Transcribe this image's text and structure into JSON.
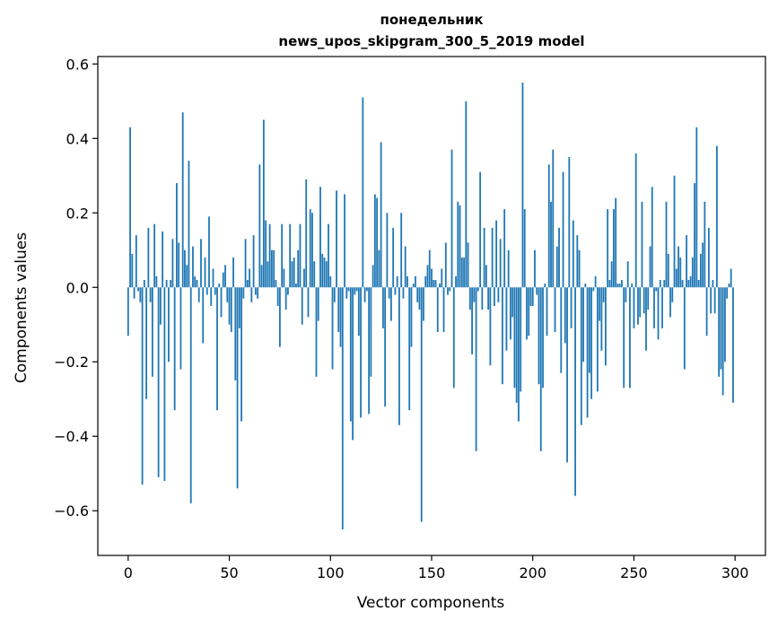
{
  "chart_data": {
    "type": "bar",
    "title": "понедельник",
    "subtitle": "news_upos_skipgram_300_5_2019 model",
    "xlabel": "Vector components",
    "ylabel": "Components values",
    "xlim": [
      -15,
      315
    ],
    "ylim": [
      -0.72,
      0.62
    ],
    "xticks": [
      0,
      50,
      100,
      150,
      200,
      250,
      300
    ],
    "yticks": [
      -0.6,
      -0.4,
      -0.2,
      0.0,
      0.2,
      0.4,
      0.6
    ],
    "xtick_labels": [
      "0",
      "50",
      "100",
      "150",
      "200",
      "250",
      "300"
    ],
    "ytick_labels": [
      "−0.6",
      "−0.4",
      "−0.2",
      "0.0",
      "0.2",
      "0.4",
      "0.6"
    ],
    "bar_color": "#1f77b4",
    "grid": false,
    "x_start": 0,
    "values": [
      -0.13,
      0.43,
      0.09,
      -0.03,
      0.14,
      -0.01,
      -0.04,
      -0.53,
      0.02,
      -0.3,
      0.16,
      -0.04,
      -0.24,
      0.17,
      0.03,
      -0.51,
      -0.1,
      0.15,
      -0.52,
      0.02,
      -0.2,
      0.02,
      0.13,
      -0.33,
      0.28,
      0.12,
      -0.22,
      0.47,
      0.1,
      0.06,
      0.34,
      -0.58,
      0.11,
      0.03,
      0.02,
      -0.04,
      0.13,
      -0.15,
      0.08,
      -0.02,
      0.19,
      -0.05,
      0.05,
      -0.02,
      -0.33,
      0.01,
      -0.08,
      0.04,
      0.06,
      -0.04,
      -0.1,
      -0.12,
      0.08,
      -0.25,
      -0.54,
      -0.11,
      -0.36,
      -0.03,
      0.13,
      0.02,
      0.05,
      -0.04,
      0.14,
      -0.02,
      -0.03,
      0.33,
      0.06,
      0.45,
      0.18,
      0.07,
      0.17,
      0.1,
      0.1,
      0.02,
      -0.05,
      -0.16,
      0.17,
      0.05,
      -0.06,
      -0.02,
      0.17,
      0.07,
      0.08,
      0.01,
      0.1,
      0.17,
      -0.1,
      0.05,
      0.29,
      -0.08,
      0.21,
      0.2,
      0.07,
      -0.24,
      -0.09,
      0.27,
      0.09,
      0.08,
      0.07,
      0.17,
      0.03,
      -0.22,
      -0.04,
      0.26,
      -0.12,
      -0.16,
      -0.65,
      0.25,
      -0.03,
      -0.01,
      -0.36,
      -0.41,
      -0.02,
      -0.01,
      -0.13,
      -0.35,
      0.51,
      -0.04,
      -0.01,
      -0.34,
      -0.24,
      0.06,
      0.25,
      0.24,
      0.1,
      0.39,
      -0.11,
      -0.32,
      0.2,
      -0.03,
      -0.09,
      0.16,
      -0.02,
      0.03,
      -0.37,
      0.2,
      -0.03,
      0.11,
      0.03,
      -0.33,
      -0.16,
      0.01,
      0.03,
      -0.04,
      -0.06,
      -0.63,
      -0.09,
      0.03,
      0.06,
      0.1,
      0.05,
      0.02,
      0.02,
      -0.12,
      0.01,
      0.05,
      -0.12,
      0.12,
      -0.02,
      -0.01,
      0.37,
      -0.27,
      0.03,
      0.23,
      0.22,
      0.08,
      0.08,
      0.5,
      0.12,
      -0.06,
      -0.18,
      -0.04,
      -0.44,
      -0.01,
      0.31,
      -0.06,
      0.16,
      0.06,
      -0.06,
      -0.21,
      0.16,
      -0.05,
      0.18,
      -0.04,
      0.13,
      -0.26,
      0.21,
      -0.17,
      0.1,
      -0.14,
      -0.08,
      -0.27,
      -0.31,
      -0.36,
      -0.28,
      0.55,
      0.21,
      -0.14,
      -0.13,
      -0.05,
      -0.05,
      0.1,
      -0.02,
      -0.26,
      -0.44,
      -0.27,
      0.01,
      -0.13,
      0.33,
      0.23,
      0.37,
      -0.12,
      0.11,
      0.16,
      -0.23,
      0.31,
      -0.15,
      -0.47,
      0.35,
      -0.11,
      0.18,
      -0.56,
      0.14,
      0.1,
      -0.37,
      -0.2,
      0.01,
      -0.35,
      -0.23,
      -0.3,
      -0.01,
      0.03,
      -0.28,
      -0.09,
      -0.17,
      -0.04,
      -0.21,
      0.21,
      0.02,
      0.07,
      0.21,
      0.24,
      0.01,
      0.01,
      0.02,
      -0.27,
      -0.04,
      0.07,
      -0.27,
      0.01,
      -0.11,
      0.36,
      -0.1,
      -0.08,
      0.23,
      -0.07,
      -0.17,
      -0.06,
      0.11,
      0.27,
      -0.11,
      -0.01,
      -0.14,
      0.02,
      -0.11,
      0.02,
      0.23,
      0.09,
      -0.08,
      -0.04,
      0.3,
      0.05,
      0.11,
      0.08,
      0.02,
      -0.22,
      0.14,
      0.02,
      0.03,
      0.08,
      0.28,
      0.43,
      0.02,
      0.09,
      0.12,
      0.23,
      -0.13,
      0.16,
      -0.07,
      0.02,
      -0.07,
      0.38,
      -0.24,
      -0.22,
      -0.29,
      -0.2,
      -0.03,
      0.01,
      0.05,
      -0.31
    ]
  }
}
